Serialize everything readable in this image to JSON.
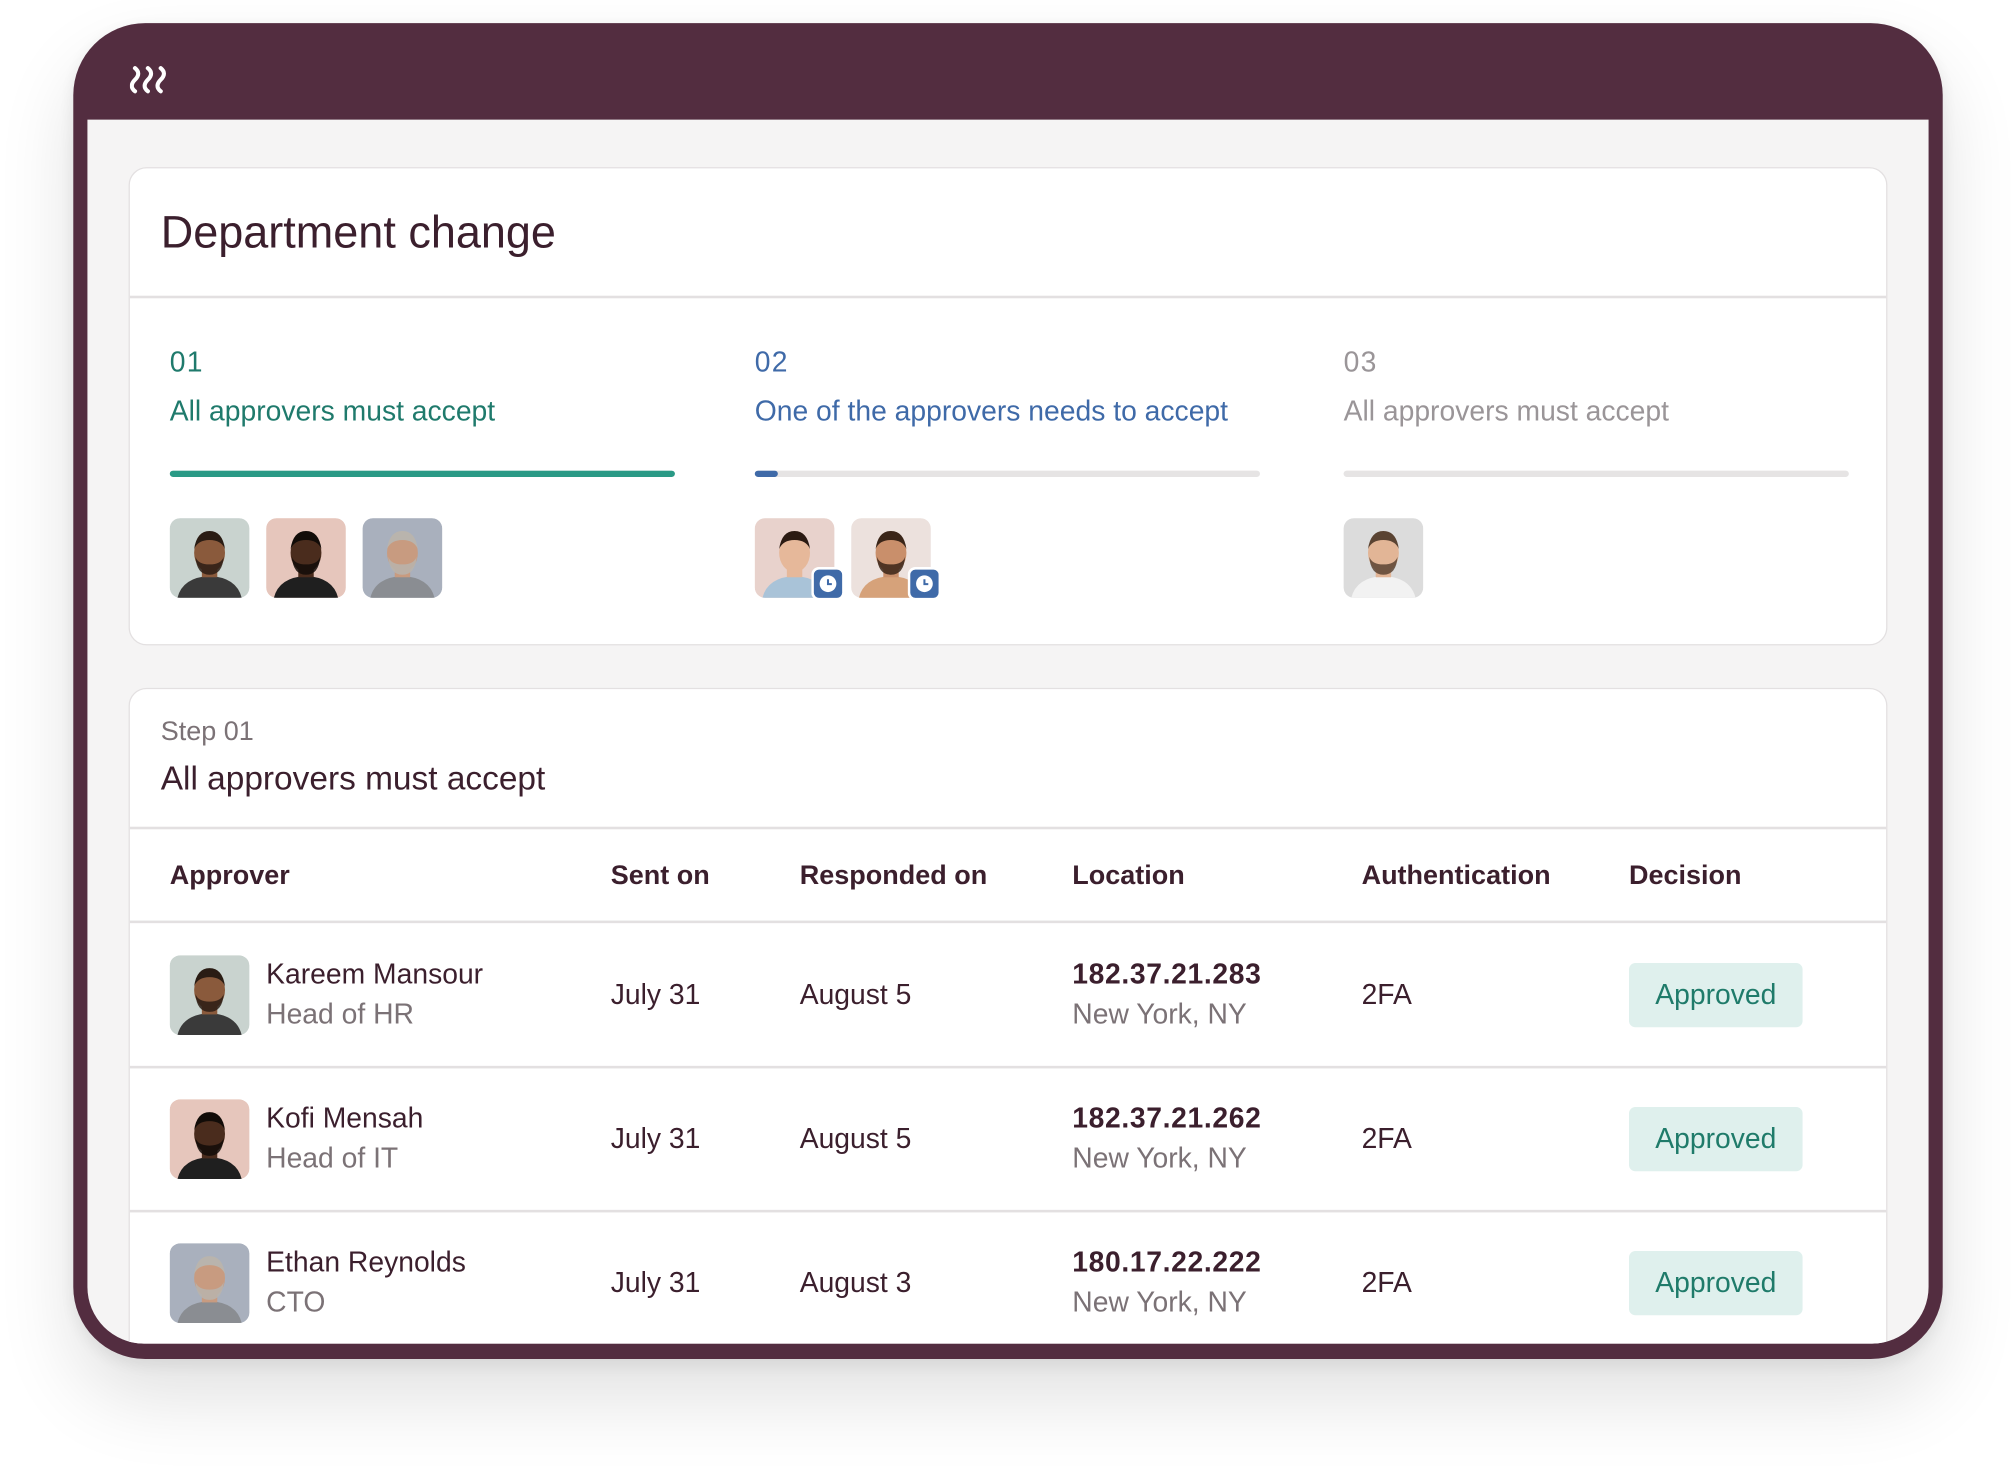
{
  "header": {
    "title": "Department change"
  },
  "steps": [
    {
      "number": "01",
      "label": "All approvers must accept"
    },
    {
      "number": "02",
      "label": "One of the approvers needs to accept"
    },
    {
      "number": "03",
      "label": "All approvers must accept"
    }
  ],
  "detail": {
    "step": "Step 01",
    "title": "All approvers must accept"
  },
  "table": {
    "columns": [
      "Approver",
      "Sent on",
      "Responded on",
      "Location",
      "Authentication",
      "Decision"
    ],
    "rows": [
      [
        "Kareem Mansour",
        "Head of HR",
        "July 31",
        "August 5",
        "182.37.21.283",
        "New York, NY",
        "2FA",
        "Approved"
      ],
      [
        "Kofi Mensah",
        "Head of IT",
        "July 31",
        "August 5",
        "182.37.21.262",
        "New York, NY",
        "2FA",
        "Approved"
      ],
      [
        "Ethan Reynolds",
        "CTO",
        "July 31",
        "August 3",
        "180.17.22.222",
        "New York, NY",
        "2FA",
        "Approved"
      ]
    ]
  }
}
